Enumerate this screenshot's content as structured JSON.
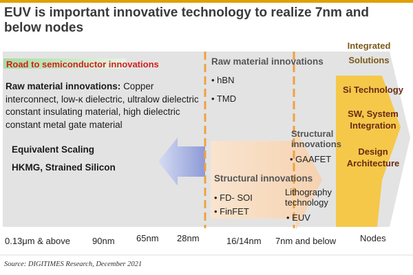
{
  "title": "EUV is important innovative technology to realize 7nm and below nodes",
  "road_label": "Road to semiconductor innovations",
  "raw_intro": {
    "heading": "Raw material innovations:",
    "text": "Copper interconnect, low-κ dielectric, ultralow dielectric constant insulating material, high dielectric constant metal gate material"
  },
  "equivalent_scaling": "Equivalent Scaling",
  "hkmg": "HKMG, Strained Silicon",
  "raw_materials": {
    "heading": "Raw material innovations",
    "items": [
      "hBN",
      "TMD"
    ]
  },
  "structural_mid": {
    "heading": "Structural innovations",
    "items": [
      "FD- SOI",
      "FinFET"
    ]
  },
  "structural_right": {
    "heading": "Structural innovations",
    "items": [
      "GAAFET"
    ]
  },
  "lithography": {
    "heading": "Lithography technology",
    "items": [
      "EUV"
    ]
  },
  "integrated": {
    "heading": "Integrated Solutions",
    "items": [
      "Si Technology",
      "SW, System Integration",
      "Design Architecture"
    ]
  },
  "axis_ticks": [
    "0.13μm & above",
    "90nm",
    "65nm",
    "28nm",
    "16/14nm",
    "7nm and below",
    "Nodes"
  ],
  "source": "Source: DIGITIMES Research, December 2021",
  "colors": {
    "accent_orange": "#f0a040",
    "road_red": "#d02020",
    "integrated_yellow": "#f5c84a",
    "big_arrow_grey": "#e2e2e2",
    "blue_arrow": "#a6b2e2",
    "peach_arrow": "#f8d8b8"
  }
}
